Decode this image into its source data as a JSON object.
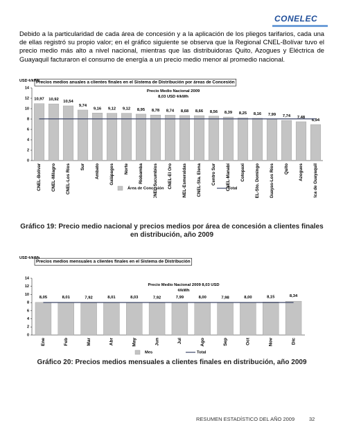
{
  "logo": "CONELEC",
  "paragraph": "Debido a la particularidad de cada área de concesión y a la aplicación de los pliegos tarifarios, cada una de ellas registró su propio valor; en el gráfico siguiente se observa que la Regional CNEL-Bolívar tuvo el precio medio más alto a nivel nacional, mientras que las distribuidoras Quito, Azogues y Eléctrica de Guayaquil facturaron el consumo de energía a un precio medio menor al promedio nacional.",
  "chart_data": [
    {
      "type": "bar",
      "title": "Precios medios anuales a clientes finales en el Sistema de Distribución por áreas de Concesión",
      "y_label": "USD ¢/kWh",
      "annotation": [
        "Precio Medio Nacional 2009",
        "8,03 USD ¢/kWh"
      ],
      "caption": "Gráfico 19: Precio medio nacional y precios medios por área de concesión a clientes finales en distribución, año 2009",
      "categories": [
        "CNEL-Bolívar",
        "CNEL-Milagro",
        "CNEL-Los Ríos",
        "Sur",
        "Ambato",
        "Galápagos",
        "Norte",
        "Riobamba",
        "CNEL-Sucumbíos",
        "CNEL-El Oro",
        "CNEL-Esmeraldas",
        "CNEL-Sta. Elena",
        "Centro Sur",
        "CNEL-Manabí",
        "Cotopaxi",
        "CNEL-Sto. Domingo",
        "CNEL-Guayas-Los Ríos",
        "Quito",
        "Azogues",
        "Eléctrica de Guayaquil"
      ],
      "series": [
        {
          "name": "Área de Concesión",
          "color": "#c4c4c4",
          "values": [
            10.97,
            10.92,
            10.54,
            9.74,
            9.16,
            9.12,
            9.12,
            8.95,
            8.78,
            8.74,
            8.68,
            8.66,
            8.56,
            8.39,
            8.25,
            8.16,
            7.99,
            7.74,
            7.48,
            6.94
          ],
          "value_labels": [
            "10,97",
            "10,92",
            "10,54",
            "9,74",
            "9,16",
            "9,12",
            "9,12",
            "8,95",
            "8,78",
            "8,74",
            "8,68",
            "8,66",
            "8,56",
            "8,39",
            "8,25",
            "8,16",
            "7,99",
            "7,74",
            "7,48",
            "6,94"
          ]
        },
        {
          "name": "Total",
          "type": "line",
          "color": "#3c4668",
          "values": [
            8.03,
            8.03,
            8.03,
            8.03,
            8.03,
            8.03,
            8.03,
            8.03,
            8.03,
            8.03,
            8.03,
            8.03,
            8.03,
            8.03,
            8.03,
            8.03,
            8.03,
            8.03,
            8.03,
            8.03
          ]
        }
      ],
      "ylim": [
        0,
        14
      ],
      "yticks": [
        0,
        2,
        4,
        6,
        8,
        10,
        12,
        14
      ]
    },
    {
      "type": "bar",
      "title": "Precios medios mensuales a clientes finales en el Sistema de Distribución",
      "y_label": "USD ¢/kWh",
      "annotation": [
        "Precio Medio Nacional 2009  8,03 USD",
        "¢/kWh"
      ],
      "caption": "Gráfico 20: Precios medios mensuales a clientes finales en distribución, año 2009",
      "categories": [
        "Ene",
        "Feb",
        "Mar",
        "Abr",
        "May",
        "Jun",
        "Jul",
        "Ago",
        "Sep",
        "Oct",
        "Nov",
        "Dic"
      ],
      "series": [
        {
          "name": "Mes",
          "color": "#c4c4c4",
          "values": [
            8.05,
            8.01,
            7.92,
            8.01,
            8.03,
            7.92,
            7.99,
            8.0,
            7.98,
            8.0,
            8.15,
            8.34
          ],
          "value_labels": [
            "8,05",
            "8,01",
            "7,92",
            "8,01",
            "8,03",
            "7,92",
            "7,99",
            "8,00",
            "7,98",
            "8,00",
            "8,15",
            "8,34"
          ]
        },
        {
          "name": "Total",
          "type": "line",
          "color": "#3c4668",
          "values": [
            8.03,
            8.03,
            8.03,
            8.03,
            8.03,
            8.03,
            8.03,
            8.03,
            8.03,
            8.03,
            8.03,
            8.03
          ]
        }
      ],
      "ylim": [
        0,
        14
      ],
      "yticks": [
        0,
        2,
        4,
        6,
        8,
        10,
        12,
        14
      ]
    }
  ],
  "footer": {
    "text": "RESUMEN ESTADÍSTICO DEL AÑO 2009",
    "page": "32"
  }
}
